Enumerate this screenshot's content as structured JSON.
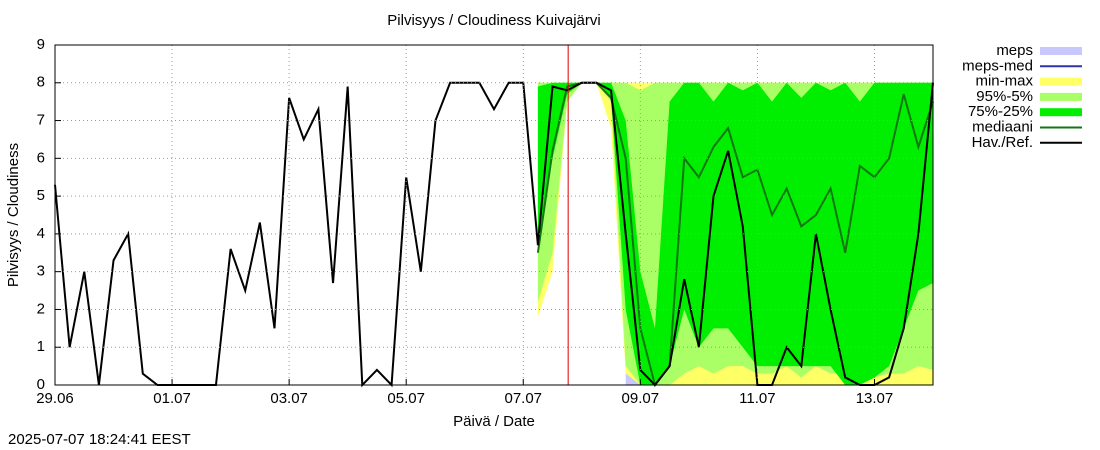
{
  "chart_data": {
    "type": "band-line",
    "title": "Pilvisyys / Cloudiness Kuivajärvi",
    "x_label": "Päivä / Date",
    "y_label": "Pilvisyys / Cloudiness",
    "timestamp": "2025-07-07 18:24:41 EEST",
    "xlim": [
      0,
      15
    ],
    "xticks": [
      {
        "value": 0,
        "label": "29.06"
      },
      {
        "value": 2,
        "label": "01.07"
      },
      {
        "value": 4,
        "label": "03.07"
      },
      {
        "value": 6,
        "label": "05.07"
      },
      {
        "value": 8,
        "label": "07.07"
      },
      {
        "value": 10,
        "label": "09.07"
      },
      {
        "value": 12,
        "label": "11.07"
      },
      {
        "value": 14,
        "label": "13.07"
      }
    ],
    "ylim": [
      0,
      9
    ],
    "yticks": [
      0,
      1,
      2,
      3,
      4,
      5,
      6,
      7,
      8,
      9
    ],
    "grid": true,
    "legend": "right",
    "now_x": 8.767,
    "now_color": "#dd0000",
    "series": [
      {
        "name": "meps",
        "kind": "band",
        "color": "#c8c8ff",
        "x": [
          8.25,
          8.5,
          8.75,
          9,
          9.25,
          9.5,
          9.75,
          10,
          10.25,
          10.5,
          10.75,
          11,
          11.25,
          11.5,
          11.75,
          12,
          12.25,
          12.5,
          12.75,
          13,
          13.25,
          13.5,
          13.75,
          14,
          14.25,
          14.5,
          14.75,
          15
        ],
        "low": [
          null,
          null,
          null,
          null,
          null,
          null,
          0,
          0,
          null,
          null,
          null,
          null,
          null,
          null,
          null,
          null,
          null,
          null,
          null,
          null,
          null,
          null,
          null,
          null,
          null,
          null,
          null,
          null
        ],
        "high": [
          null,
          null,
          null,
          null,
          null,
          null,
          3,
          1.5,
          null,
          null,
          null,
          null,
          null,
          null,
          null,
          null,
          null,
          null,
          null,
          null,
          null,
          null,
          null,
          null,
          null,
          null,
          null,
          null
        ]
      },
      {
        "name": "meps-med",
        "kind": "line",
        "color": "#3333aa",
        "x": [
          8.25,
          8.5,
          8.75,
          9,
          9.25,
          9.5,
          9.75,
          10,
          10.25,
          10.5,
          10.75,
          11,
          11.25,
          11.5,
          11.75,
          12,
          12.25,
          12.5,
          12.75,
          13,
          13.25,
          13.5,
          13.75,
          14,
          14.25,
          14.5,
          14.75,
          15
        ],
        "values": [
          null,
          null,
          null,
          null,
          null,
          null,
          null,
          null,
          null,
          null,
          null,
          null,
          null,
          null,
          null,
          null,
          null,
          null,
          null,
          null,
          null,
          null,
          null,
          null,
          null,
          null,
          null,
          null
        ]
      },
      {
        "name": "min-max",
        "kind": "band",
        "color": "#ffff66",
        "x": [
          8.25,
          8.5,
          8.75,
          9,
          9.25,
          9.5,
          9.75,
          10,
          10.25,
          10.5,
          10.75,
          11,
          11.25,
          11.5,
          11.75,
          12,
          12.25,
          12.5,
          12.75,
          13,
          13.25,
          13.5,
          13.75,
          14,
          14.25,
          14.5,
          14.75,
          15
        ],
        "low": [
          1.8,
          3,
          7.5,
          8,
          8,
          6.8,
          0.3,
          0,
          0,
          0,
          0,
          0,
          0,
          0,
          0,
          0,
          0,
          0,
          0,
          0,
          0,
          0,
          0,
          0,
          0,
          0,
          0,
          0
        ],
        "high": [
          8,
          8,
          8,
          8,
          8,
          8,
          8,
          8,
          8,
          8,
          8,
          8,
          8,
          8,
          8,
          8,
          8,
          8,
          8,
          8,
          8,
          8,
          8,
          8,
          8,
          8,
          8,
          8
        ]
      },
      {
        "name": "95%-5%",
        "kind": "band",
        "color": "#aaff66",
        "x": [
          8.25,
          8.5,
          8.75,
          9,
          9.25,
          9.5,
          9.75,
          10,
          10.25,
          10.5,
          10.75,
          11,
          11.25,
          11.5,
          11.75,
          12,
          12.25,
          12.5,
          12.75,
          13,
          13.25,
          13.5,
          13.75,
          14,
          14.25,
          14.5,
          14.75,
          15
        ],
        "low": [
          2.2,
          3.5,
          7.5,
          8,
          8,
          7.5,
          0.5,
          0,
          0,
          0,
          0.3,
          0.5,
          0.3,
          0.5,
          0.5,
          0.3,
          0.3,
          0.5,
          0.2,
          0.5,
          0.3,
          0.3,
          0,
          0.2,
          0.3,
          0.3,
          0.5,
          0.4
        ],
        "high": [
          8,
          8,
          8,
          8,
          8,
          8,
          8,
          7.8,
          8,
          8,
          8,
          8,
          8,
          8,
          8,
          8,
          8,
          8,
          8,
          8,
          8,
          8,
          8,
          8,
          8,
          8,
          8,
          8
        ]
      },
      {
        "name": "75%-25%",
        "kind": "band",
        "color": "#00ee00",
        "x": [
          8.25,
          8.5,
          8.75,
          9,
          9.25,
          9.5,
          9.75,
          10,
          10.25,
          10.5,
          10.75,
          11,
          11.25,
          11.5,
          11.75,
          12,
          12.25,
          12.5,
          12.75,
          13,
          13.25,
          13.5,
          13.75,
          14,
          14.25,
          14.5,
          14.75,
          15
        ],
        "low": [
          3.5,
          6,
          7.7,
          8,
          8,
          7.6,
          2,
          0,
          0,
          0.5,
          2,
          1,
          1.5,
          1.5,
          1,
          0.5,
          0.5,
          0.5,
          0.5,
          0.5,
          0.5,
          0,
          0,
          0.2,
          0.5,
          1.5,
          2.5,
          2.7
        ],
        "high": [
          7.9,
          8,
          8,
          8,
          8,
          8,
          7,
          3,
          1.5,
          7.5,
          8,
          8,
          7.5,
          8,
          7.8,
          8,
          7.5,
          8,
          7.6,
          8,
          7.8,
          8,
          7.5,
          8,
          8,
          8,
          8,
          8
        ]
      },
      {
        "name": "mediaani",
        "kind": "line",
        "color": "#117711",
        "x": [
          8.25,
          8.5,
          8.75,
          9,
          9.25,
          9.5,
          9.75,
          10,
          10.25,
          10.5,
          10.75,
          11,
          11.25,
          11.5,
          11.75,
          12,
          12.25,
          12.5,
          12.75,
          13,
          13.25,
          13.5,
          13.75,
          14,
          14.25,
          14.5,
          14.75,
          15
        ],
        "values": [
          3.5,
          6.2,
          7.9,
          8,
          8,
          7.6,
          6,
          1.5,
          0,
          0.5,
          6,
          5.5,
          6.3,
          6.8,
          5.5,
          5.7,
          4.5,
          5.2,
          4.2,
          4.5,
          5.2,
          3.5,
          5.8,
          5.5,
          6,
          7.7,
          6.3,
          7.5
        ]
      },
      {
        "name": "Hav./Ref.",
        "kind": "line",
        "color": "#000000",
        "x": [
          0,
          0.25,
          0.5,
          0.75,
          1,
          1.25,
          1.5,
          1.75,
          2,
          2.25,
          2.5,
          2.75,
          3,
          3.25,
          3.5,
          3.75,
          4,
          4.25,
          4.5,
          4.75,
          5,
          5.25,
          5.5,
          5.75,
          6,
          6.25,
          6.5,
          6.75,
          7,
          7.25,
          7.5,
          7.75,
          8,
          8.25,
          8.5,
          8.75,
          9,
          9.25,
          9.5,
          9.75,
          10,
          10.25,
          10.5,
          10.75,
          11,
          11.25,
          11.5,
          11.75,
          12,
          12.25,
          12.5,
          12.75,
          13,
          13.25,
          13.5,
          13.75,
          14,
          14.25,
          14.5,
          14.75,
          15
        ],
        "values": [
          5.3,
          1,
          3,
          0,
          3.3,
          4,
          0.3,
          0,
          0,
          0,
          0,
          0,
          3.6,
          2.5,
          4.3,
          1.5,
          7.6,
          6.5,
          7.3,
          2.7,
          7.9,
          0,
          0.4,
          0,
          5.5,
          3,
          7,
          8,
          8,
          8,
          7.3,
          8,
          8,
          3.7,
          7.9,
          7.8,
          8,
          8,
          7.8,
          4,
          0.4,
          0,
          0.5,
          2.8,
          1,
          5,
          6.2,
          4.2,
          0,
          0,
          1,
          0.5,
          4,
          2,
          0.2,
          0,
          0,
          0.2,
          1.5,
          4,
          8
        ]
      }
    ]
  }
}
